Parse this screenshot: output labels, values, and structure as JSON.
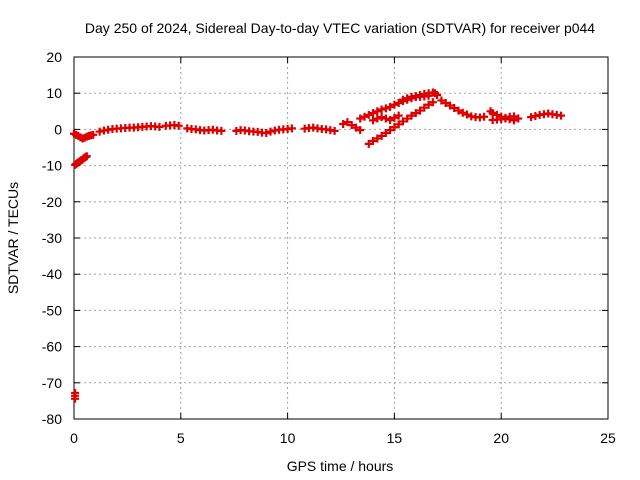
{
  "chart_data": {
    "type": "scatter",
    "title": "Day 250 of 2024, Sidereal Day-to-day VTEC variation (SDTVAR) for receiver p044",
    "xlabel": "GPS time / hours",
    "ylabel": "SDTVAR / TECUs",
    "xlim": [
      0,
      25
    ],
    "ylim": [
      -80,
      20
    ],
    "xticks": [
      0,
      5,
      10,
      15,
      20,
      25
    ],
    "yticks": [
      20,
      10,
      0,
      -10,
      -20,
      -30,
      -40,
      -50,
      -60,
      -70,
      -80
    ],
    "grid": true,
    "marker": "+",
    "color": "#dd0000",
    "series": [
      {
        "name": "SDTVAR",
        "points": [
          [
            0.05,
            -9.8
          ],
          [
            0.1,
            -9.6
          ],
          [
            0.15,
            -9.3
          ],
          [
            0.2,
            -9.1
          ],
          [
            0.25,
            -8.9
          ],
          [
            0.3,
            -8.7
          ],
          [
            0.35,
            -8.5
          ],
          [
            0.4,
            -8.3
          ],
          [
            0.45,
            -8.0
          ],
          [
            0.5,
            -7.8
          ],
          [
            0.55,
            -7.6
          ],
          [
            0.6,
            -7.4
          ],
          [
            0.0,
            -1.2
          ],
          [
            0.1,
            -1.5
          ],
          [
            0.2,
            -1.8
          ],
          [
            0.3,
            -2.2
          ],
          [
            0.4,
            -2.5
          ],
          [
            0.5,
            -2.3
          ],
          [
            0.6,
            -2.0
          ],
          [
            0.7,
            -1.8
          ],
          [
            0.8,
            -1.6
          ],
          [
            0.9,
            -1.5
          ],
          [
            0.05,
            -72.8
          ],
          [
            0.05,
            -73.6
          ],
          [
            0.05,
            -74.4
          ],
          [
            1.2,
            -0.6
          ],
          [
            1.4,
            -0.3
          ],
          [
            1.6,
            -0.1
          ],
          [
            1.8,
            0.1
          ],
          [
            2.0,
            0.2
          ],
          [
            2.2,
            0.3
          ],
          [
            2.4,
            0.4
          ],
          [
            2.6,
            0.5
          ],
          [
            2.8,
            0.5
          ],
          [
            3.0,
            0.6
          ],
          [
            3.2,
            0.7
          ],
          [
            3.4,
            0.8
          ],
          [
            3.6,
            0.9
          ],
          [
            3.8,
            0.8
          ],
          [
            4.0,
            0.7
          ],
          [
            4.3,
            1.0
          ],
          [
            4.5,
            1.1
          ],
          [
            4.7,
            1.2
          ],
          [
            4.9,
            1.0
          ],
          [
            5.3,
            0.3
          ],
          [
            5.5,
            0.1
          ],
          [
            5.7,
            0.0
          ],
          [
            5.9,
            -0.2
          ],
          [
            6.1,
            -0.3
          ],
          [
            6.3,
            -0.2
          ],
          [
            6.5,
            -0.1
          ],
          [
            6.7,
            -0.3
          ],
          [
            6.9,
            -0.4
          ],
          [
            7.6,
            -0.4
          ],
          [
            7.8,
            -0.2
          ],
          [
            8.0,
            -0.3
          ],
          [
            8.2,
            -0.5
          ],
          [
            8.4,
            -0.6
          ],
          [
            8.6,
            -0.7
          ],
          [
            8.8,
            -0.9
          ],
          [
            9.0,
            -1.0
          ],
          [
            9.2,
            -0.6
          ],
          [
            9.4,
            -0.3
          ],
          [
            9.6,
            -0.1
          ],
          [
            9.8,
            0.0
          ],
          [
            10.0,
            0.1
          ],
          [
            10.2,
            0.3
          ],
          [
            10.8,
            0.2
          ],
          [
            11.0,
            0.4
          ],
          [
            11.2,
            0.5
          ],
          [
            11.4,
            0.3
          ],
          [
            11.6,
            0.1
          ],
          [
            11.8,
            0.0
          ],
          [
            12.0,
            -0.2
          ],
          [
            12.2,
            -0.4
          ],
          [
            12.6,
            1.5
          ],
          [
            12.8,
            2.0
          ],
          [
            13.0,
            1.2
          ],
          [
            13.2,
            0.5
          ],
          [
            13.4,
            -0.2
          ],
          [
            13.4,
            3.0
          ],
          [
            13.6,
            3.5
          ],
          [
            13.8,
            4.0
          ],
          [
            14.0,
            4.5
          ],
          [
            14.2,
            5.0
          ],
          [
            14.4,
            5.5
          ],
          [
            14.6,
            5.8
          ],
          [
            14.8,
            6.2
          ],
          [
            15.0,
            6.8
          ],
          [
            15.2,
            7.3
          ],
          [
            15.4,
            7.8
          ],
          [
            15.6,
            8.2
          ],
          [
            15.8,
            8.6
          ],
          [
            16.0,
            8.9
          ],
          [
            16.2,
            9.0
          ],
          [
            16.4,
            9.1
          ],
          [
            16.6,
            9.3
          ],
          [
            13.8,
            -4.0
          ],
          [
            14.0,
            -3.2
          ],
          [
            14.2,
            -2.5
          ],
          [
            14.4,
            -1.8
          ],
          [
            14.6,
            -1.0
          ],
          [
            14.8,
            -0.2
          ],
          [
            15.0,
            0.6
          ],
          [
            15.2,
            1.4
          ],
          [
            15.4,
            2.2
          ],
          [
            15.6,
            3.0
          ],
          [
            15.8,
            3.8
          ],
          [
            16.0,
            4.5
          ],
          [
            16.2,
            5.2
          ],
          [
            16.4,
            6.0
          ],
          [
            16.6,
            6.8
          ],
          [
            16.8,
            7.5
          ],
          [
            14.0,
            2.5
          ],
          [
            14.2,
            3.0
          ],
          [
            14.4,
            3.4
          ],
          [
            14.6,
            3.0
          ],
          [
            14.8,
            2.6
          ],
          [
            15.0,
            3.2
          ],
          [
            15.2,
            3.8
          ],
          [
            15.4,
            8.2
          ],
          [
            15.6,
            8.6
          ],
          [
            15.8,
            9.0
          ],
          [
            16.0,
            9.2
          ],
          [
            16.2,
            9.5
          ],
          [
            16.4,
            9.8
          ],
          [
            16.6,
            10.0
          ],
          [
            16.8,
            10.2
          ],
          [
            16.9,
            10.0
          ],
          [
            17.0,
            9.5
          ],
          [
            17.2,
            8.0
          ],
          [
            17.4,
            7.3
          ],
          [
            17.6,
            6.6
          ],
          [
            17.8,
            5.9
          ],
          [
            18.0,
            5.2
          ],
          [
            18.2,
            4.6
          ],
          [
            18.4,
            4.1
          ],
          [
            18.6,
            3.6
          ],
          [
            18.8,
            3.4
          ],
          [
            19.0,
            3.3
          ],
          [
            19.2,
            3.5
          ],
          [
            19.5,
            5.0
          ],
          [
            19.6,
            4.5
          ],
          [
            19.8,
            4.0
          ],
          [
            20.0,
            3.5
          ],
          [
            20.2,
            3.0
          ],
          [
            20.4,
            2.8
          ],
          [
            20.6,
            2.5
          ],
          [
            20.8,
            3.0
          ],
          [
            19.6,
            2.6
          ],
          [
            19.8,
            2.7
          ],
          [
            20.0,
            2.8
          ],
          [
            20.2,
            3.2
          ],
          [
            20.4,
            3.5
          ],
          [
            20.6,
            3.6
          ],
          [
            21.4,
            3.4
          ],
          [
            21.6,
            3.7
          ],
          [
            21.8,
            4.0
          ],
          [
            22.0,
            4.2
          ],
          [
            22.2,
            4.4
          ],
          [
            22.4,
            4.2
          ],
          [
            22.6,
            4.0
          ],
          [
            22.8,
            3.8
          ]
        ]
      }
    ]
  }
}
